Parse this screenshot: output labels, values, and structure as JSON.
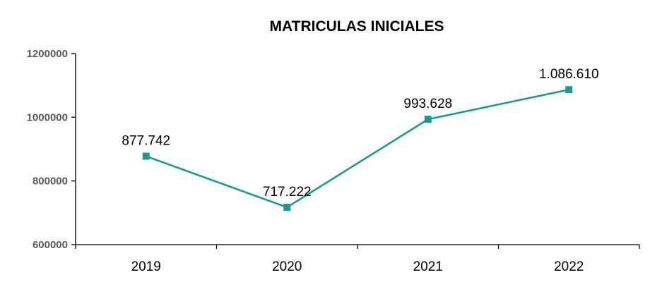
{
  "chart_data": {
    "type": "line",
    "title": "MATRICULAS INICIALES",
    "xlabel": "",
    "ylabel": "",
    "categories": [
      "2019",
      "2020",
      "2021",
      "2022"
    ],
    "series": [
      {
        "values": [
          877742,
          717222,
          993628,
          1086610
        ],
        "labels": [
          "877.742",
          "717.222",
          "993.628",
          "1.086.610"
        ],
        "color": "#1a9a93"
      }
    ],
    "ylim": [
      600000,
      1200000
    ],
    "yticks": [
      "600000",
      "800000",
      "1000000",
      "1200000"
    ],
    "grid": false,
    "legend": "none"
  }
}
